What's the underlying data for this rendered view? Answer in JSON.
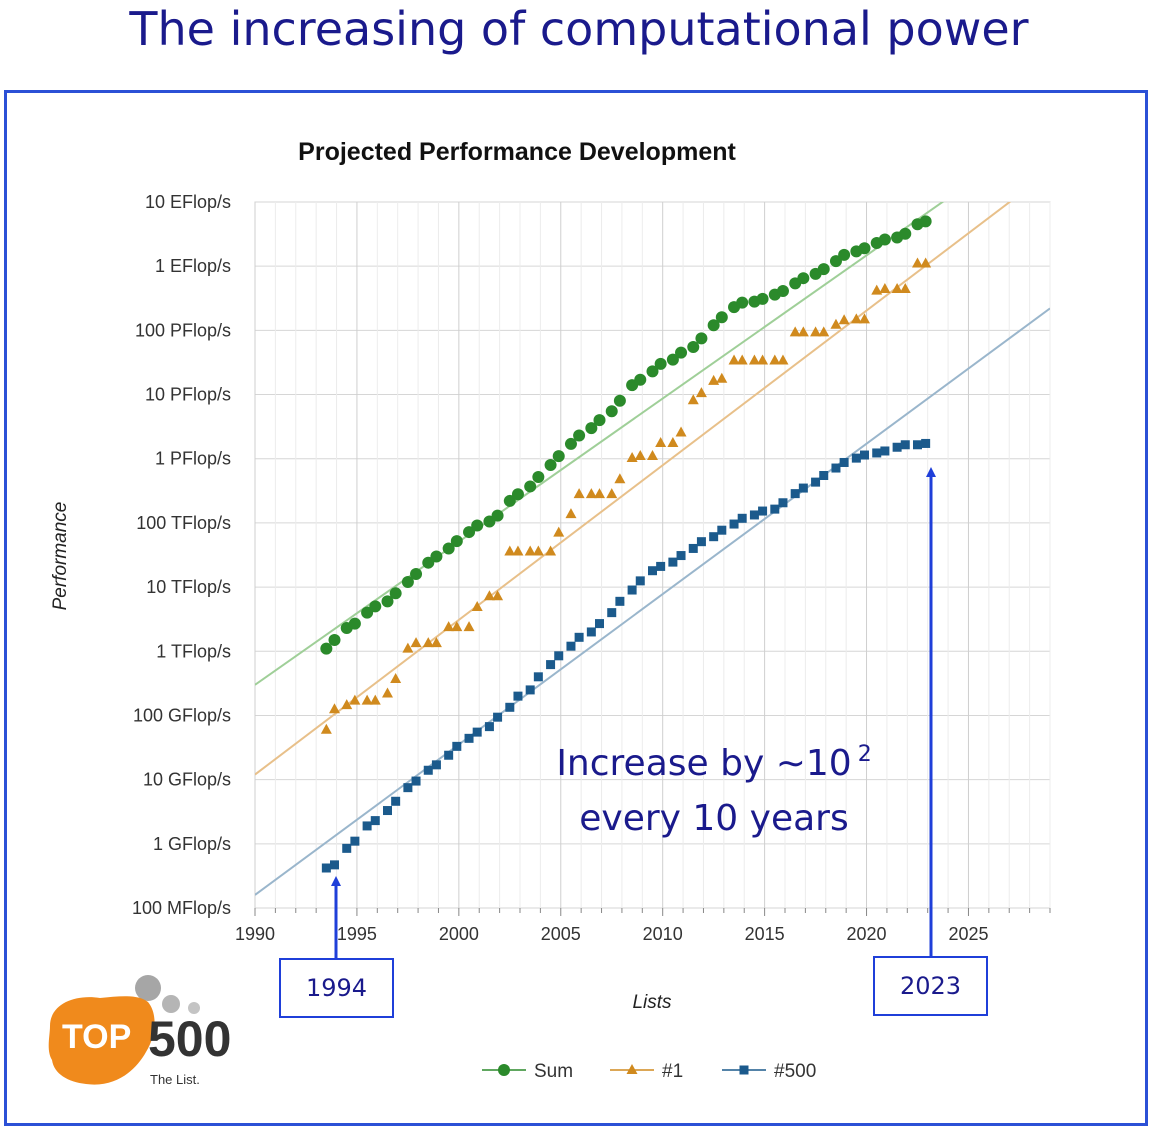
{
  "slide": {
    "title": "The increasing of computational power",
    "annotation_line1": "Increase by ∼10",
    "annotation_sup": "2",
    "annotation_line2": "every 10 years",
    "callout_left": "1994",
    "callout_right": "2023"
  },
  "logo": {
    "top": "TOP",
    "num": "500",
    "tagline": "The List.",
    "orange": "#f08a1c",
    "gray": "#9a9a9a"
  },
  "colors": {
    "sum": "#2b8a2b",
    "top1": "#d08a1e",
    "top500": "#1b5a8c",
    "sum_trend": "#9fcf98",
    "top1_trend": "#e8c08a",
    "top500_trend": "#9ab6cc",
    "annotation": "#1a1a8c",
    "arrow": "#1f3fd9"
  },
  "chart_data": {
    "type": "scatter",
    "title": "Projected Performance Development",
    "xlabel": "Lists",
    "ylabel": "Performance",
    "xlim": [
      1990,
      2029
    ],
    "x_ticks": [
      1990,
      1995,
      2000,
      2005,
      2010,
      2015,
      2020,
      2025
    ],
    "y_scale": "log",
    "ylim": [
      0.1,
      10000000000
    ],
    "y_ticks": [
      {
        "value": 0.1,
        "label": "100 MFlop/s"
      },
      {
        "value": 1,
        "label": "1 GFlop/s"
      },
      {
        "value": 10,
        "label": "10 GFlop/s"
      },
      {
        "value": 100,
        "label": "100 GFlop/s"
      },
      {
        "value": 1000,
        "label": "1 TFlop/s"
      },
      {
        "value": 10000,
        "label": "10 TFlop/s"
      },
      {
        "value": 100000,
        "label": "100 TFlop/s"
      },
      {
        "value": 1000000,
        "label": "1 PFlop/s"
      },
      {
        "value": 10000000,
        "label": "10 PFlop/s"
      },
      {
        "value": 100000000,
        "label": "100 PFlop/s"
      },
      {
        "value": 1000000000,
        "label": "1 EFlop/s"
      },
      {
        "value": 10000000000,
        "label": "10 EFlop/s"
      }
    ],
    "legend_position": "bottom",
    "grid": true,
    "series": [
      {
        "name": "Sum",
        "marker": "circle",
        "x": [
          1993.5,
          1993.9,
          1994.5,
          1994.9,
          1995.5,
          1995.9,
          1996.5,
          1996.9,
          1997.5,
          1997.9,
          1998.5,
          1998.9,
          1999.5,
          1999.9,
          2000.5,
          2000.9,
          2001.5,
          2001.9,
          2002.5,
          2002.9,
          2003.5,
          2003.9,
          2004.5,
          2004.9,
          2005.5,
          2005.9,
          2006.5,
          2006.9,
          2007.5,
          2007.9,
          2008.5,
          2008.9,
          2009.5,
          2009.9,
          2010.5,
          2010.9,
          2011.5,
          2011.9,
          2012.5,
          2012.9,
          2013.5,
          2013.9,
          2014.5,
          2014.9,
          2015.5,
          2015.9,
          2016.5,
          2016.9,
          2017.5,
          2017.9,
          2018.5,
          2018.9,
          2019.5,
          2019.9,
          2020.5,
          2020.9,
          2021.5,
          2021.9,
          2022.5,
          2022.9
        ],
        "values": [
          1100,
          1500,
          2300,
          2700,
          4000,
          5000,
          6000,
          8000,
          12000,
          16000,
          24000,
          30000,
          40000,
          52000,
          72000,
          91000,
          105000,
          130000,
          220000,
          280000,
          370000,
          520000,
          800000,
          1100000,
          1700000,
          2300000,
          3000000,
          4000000,
          5500000,
          8000000,
          14000000,
          17000000,
          23000000,
          30000000,
          35000000,
          45000000,
          55000000,
          75000000,
          120000000,
          160000000,
          230000000,
          270000000,
          280000000,
          310000000,
          360000000,
          410000000,
          540000000,
          650000000,
          760000000,
          900000000,
          1200000000,
          1500000000,
          1700000000,
          1900000000,
          2300000000,
          2600000000,
          2800000000,
          3200000000,
          4500000000,
          5000000000
        ]
      },
      {
        "name": "#1",
        "marker": "triangle",
        "x": [
          1993.5,
          1993.9,
          1994.5,
          1994.9,
          1995.5,
          1995.9,
          1996.5,
          1996.9,
          1997.5,
          1997.9,
          1998.5,
          1998.9,
          1999.5,
          1999.9,
          2000.5,
          2000.9,
          2001.5,
          2001.9,
          2002.5,
          2002.9,
          2003.5,
          2003.9,
          2004.5,
          2004.9,
          2005.5,
          2005.9,
          2006.5,
          2006.9,
          2007.5,
          2007.9,
          2008.5,
          2008.9,
          2009.5,
          2009.9,
          2010.5,
          2010.9,
          2011.5,
          2011.9,
          2012.5,
          2012.9,
          2013.5,
          2013.9,
          2014.5,
          2014.9,
          2015.5,
          2015.9,
          2016.5,
          2016.9,
          2017.5,
          2017.9,
          2018.5,
          2018.9,
          2019.5,
          2019.9,
          2020.5,
          2020.9,
          2021.5,
          2021.9,
          2022.5,
          2022.9
        ],
        "values": [
          60,
          125,
          145,
          170,
          170,
          170,
          220,
          370,
          1100,
          1340,
          1340,
          1340,
          2380,
          2380,
          2380,
          4900,
          7200,
          7200,
          35800,
          35800,
          35800,
          35800,
          35800,
          70700,
          136800,
          280600,
          280600,
          280600,
          280600,
          478200,
          1026000,
          1105000,
          1105000,
          1759000,
          1759000,
          2566000,
          8162000,
          10510000,
          16320000,
          17590000,
          33860000,
          33860000,
          33860000,
          33860000,
          33860000,
          33860000,
          93010000,
          93010000,
          93010000,
          93010000,
          122300000,
          143500000,
          148600000,
          148600000,
          415500000,
          442000000,
          442000000,
          442000000,
          1102000000,
          1102000000
        ]
      },
      {
        "name": "#500",
        "marker": "square",
        "x": [
          1993.5,
          1993.9,
          1994.5,
          1994.9,
          1995.5,
          1995.9,
          1996.5,
          1996.9,
          1997.5,
          1997.9,
          1998.5,
          1998.9,
          1999.5,
          1999.9,
          2000.5,
          2000.9,
          2001.5,
          2001.9,
          2002.5,
          2002.9,
          2003.5,
          2003.9,
          2004.5,
          2004.9,
          2005.5,
          2005.9,
          2006.5,
          2006.9,
          2007.5,
          2007.9,
          2008.5,
          2008.9,
          2009.5,
          2009.9,
          2010.5,
          2010.9,
          2011.5,
          2011.9,
          2012.5,
          2012.9,
          2013.5,
          2013.9,
          2014.5,
          2014.9,
          2015.5,
          2015.9,
          2016.5,
          2016.9,
          2017.5,
          2017.9,
          2018.5,
          2018.9,
          2019.5,
          2019.9,
          2020.5,
          2020.9,
          2021.5,
          2021.9,
          2022.5,
          2022.9
        ],
        "values": [
          0.42,
          0.47,
          0.85,
          1.1,
          1.9,
          2.3,
          3.3,
          4.6,
          7.5,
          9.5,
          14,
          17,
          24,
          33,
          44,
          55,
          67,
          94,
          134,
          200,
          250,
          400,
          620,
          850,
          1200,
          1650,
          2000,
          2700,
          4000,
          6000,
          9000,
          12500,
          18000,
          21000,
          24500,
          31000,
          40000,
          51000,
          61000,
          77000,
          96000,
          118000,
          133000,
          153000,
          164000,
          206000,
          286000,
          349000,
          432000,
          548000,
          716000,
          874000,
          1022000,
          1142000,
          1230000,
          1320000,
          1510000,
          1650000,
          1650000,
          1730000
        ]
      }
    ],
    "trendlines": [
      {
        "series": "Sum",
        "x": [
          1990,
          2029
        ],
        "values": [
          300,
          150000000000
        ]
      },
      {
        "series": "#1",
        "x": [
          1990,
          2029
        ],
        "values": [
          12,
          30000000000
        ]
      },
      {
        "series": "#500",
        "x": [
          1990,
          2029
        ],
        "values": [
          0.16,
          220000000
        ]
      }
    ]
  }
}
